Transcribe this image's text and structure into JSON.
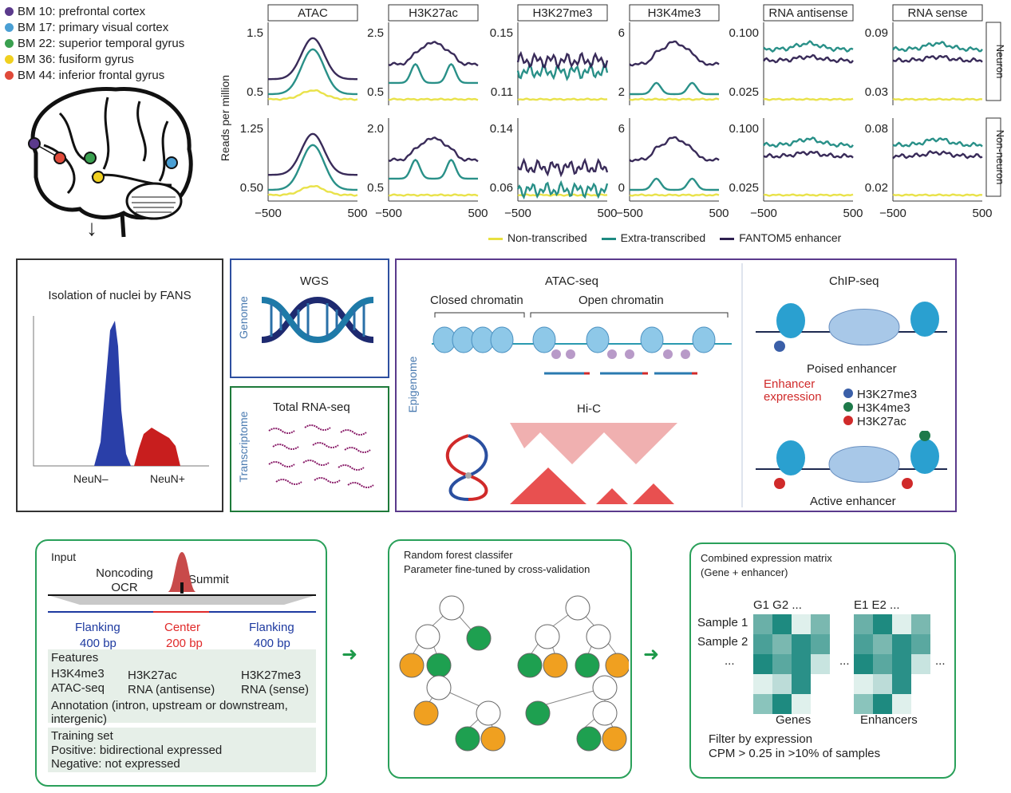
{
  "legend": [
    {
      "label": "BM 10: prefrontal cortex",
      "color": "#5b3a8c"
    },
    {
      "label": "BM 17: primary visual cortex",
      "color": "#4a9fd4"
    },
    {
      "label": "BM 22: superior temporal gyrus",
      "color": "#3aa050"
    },
    {
      "label": "BM 36: fusiform gyrus",
      "color": "#f0d020"
    },
    {
      "label": "BM 44: inferior frontal gyrus",
      "color": "#e04a3a"
    }
  ],
  "chart_data": {
    "type": "line",
    "ylabel": "Reads per million",
    "xticks": [
      "−500",
      "500"
    ],
    "x": [
      -500,
      500
    ],
    "rows": [
      "Neuron",
      "Non-neuron"
    ],
    "panels": [
      "ATAC",
      "H3K27ac",
      "H3K27me3",
      "H3K4me3",
      "RNA antisense",
      "RNA sense"
    ],
    "yticks": {
      "Neuron": [
        [
          "1.5",
          "0.5"
        ],
        [
          "2.5",
          "0.5"
        ],
        [
          "0.15",
          "0.11"
        ],
        [
          "6",
          "2"
        ],
        [
          "0.100",
          "0.025"
        ],
        [
          "0.09",
          "0.03"
        ]
      ],
      "Non-neuron": [
        [
          "1.25",
          "0.50"
        ],
        [
          "2.0",
          "0.5"
        ],
        [
          "0.14",
          "0.06"
        ],
        [
          "6",
          "0"
        ],
        [
          "0.100",
          "0.025"
        ],
        [
          "0.08",
          "0.02"
        ]
      ]
    },
    "series": [
      {
        "name": "Non-transcribed",
        "color": "#e8e040"
      },
      {
        "name": "Extra-transcribed",
        "color": "#1e8a82"
      },
      {
        "name": "FANTOM5 enhancer",
        "color": "#2e2050"
      }
    ]
  },
  "fans": {
    "title": "Isolation of nuclei by FANS",
    "neg": "NeuN–",
    "pos": "NeuN+"
  },
  "genome": {
    "side": "Genome",
    "title": "WGS"
  },
  "transcriptome": {
    "side": "Transcriptome",
    "title": "Total RNA-seq"
  },
  "epigenome": {
    "side": "Epigenome",
    "atac": "ATAC-seq",
    "closed": "Closed chromatin",
    "open": "Open chromatin",
    "hic": "Hi-C",
    "chip": "ChIP-seq",
    "poised": "Poised enhancer",
    "active": "Active enhancer",
    "enh_expr": "Enhancer expression",
    "marks": [
      {
        "label": "H3K27me3",
        "tag": "Me",
        "color": "#3a5fa8"
      },
      {
        "label": "H3K4me3",
        "tag": "Me",
        "color": "#1e7a4a"
      },
      {
        "label": "H3K27ac",
        "tag": "Ac",
        "color": "#d02a2a"
      }
    ]
  },
  "input_box": {
    "input": "Input",
    "ocr": "Noncoding OCR",
    "summit": "Summit",
    "flank_left": "Flanking",
    "center": "Center",
    "flank_right": "Flanking",
    "bp_left": "400 bp",
    "bp_center": "200 bp",
    "bp_right": "400 bp",
    "features_title": "Features",
    "f1a": "H3K4me3",
    "f1b": "ATAC-seq",
    "f2a": "H3K27ac",
    "f2b": "RNA (antisense)",
    "f3a": "H3K27me3",
    "f3b": "RNA (sense)",
    "annotation": "Annotation (intron, upstream or downstream, intergenic)",
    "training_title": "Training set",
    "positive": "Positive: bidirectional expressed",
    "negative": "Negative: not expressed"
  },
  "rf_box": {
    "line1": "Random forest classifer",
    "line2": "Parameter fine-tuned by cross-validation"
  },
  "matrix_box": {
    "line1": "Combined expression matrix",
    "line2": "(Gene + enhancer)",
    "genes_header": "G1 G2  ...",
    "enh_header": "E1 E2  ...",
    "sample1": "Sample 1",
    "sample2": "Sample 2",
    "dots": "...",
    "genes": "Genes",
    "enhancers": "Enhancers",
    "filter1": "Filter by expression",
    "filter2": "CPM > 0.25 in >10% of samples"
  }
}
